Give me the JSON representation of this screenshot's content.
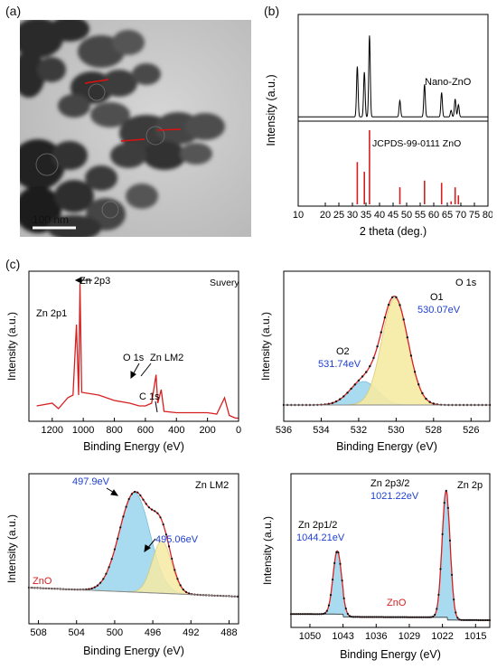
{
  "labels": {
    "a": "(a)",
    "b": "(b)",
    "c": "(c)"
  },
  "tem": {
    "scalebar": "100 nm"
  },
  "xrd": {
    "xlabel": "2 theta (deg.)",
    "ylabel": "Intensity (a.u.)",
    "ticks": [
      "10",
      "20",
      "25",
      "30",
      "35",
      "40",
      "45",
      "50",
      "55",
      "60",
      "65",
      "70",
      "75",
      "80"
    ],
    "curve_label": "Nano-ZnO",
    "ref_label": "JCPDS-99-0111 ZnO"
  },
  "xps": {
    "xlabel": "Binding Energy (eV)",
    "ylabel": "Intensity (a.u.)",
    "survey": {
      "title": "Suvery",
      "peaks": [
        "Zn 2p3",
        "Zn 2p1",
        "O 1s",
        "Zn LM2",
        "C 1s"
      ],
      "ticks": [
        "1200",
        "1000",
        "800",
        "600",
        "400",
        "200",
        "0"
      ]
    },
    "o1s": {
      "title": "O 1s",
      "o1_label": "O1",
      "o1_energy": "530.07eV",
      "o2_label": "O2",
      "o2_energy": "531.74eV",
      "ticks": [
        "536",
        "534",
        "532",
        "530",
        "528",
        "526"
      ]
    },
    "znlm2": {
      "title": "Zn LM2",
      "peak1": "497.9eV",
      "peak2": "495.06eV",
      "zno": "ZnO",
      "ticks": [
        "508",
        "504",
        "500",
        "496",
        "492",
        "488"
      ]
    },
    "zn2p": {
      "title": "Zn 2p",
      "p32_label": "Zn 2p3/2",
      "p32_energy": "1021.22eV",
      "p12_label": "Zn 2p1/2",
      "p12_energy": "1044.21eV",
      "zno": "ZnO",
      "ticks": [
        "1050",
        "1043",
        "1036",
        "1029",
        "1022",
        "1015"
      ]
    }
  },
  "chart_data": [
    {
      "type": "line",
      "title": "",
      "xlabel": "2 theta (deg.)",
      "ylabel": "Intensity (a.u.)",
      "xlim": [
        10,
        80
      ],
      "series": [
        {
          "name": "Nano-ZnO",
          "x": [
            31.8,
            34.4,
            36.3,
            47.5,
            56.6,
            62.9,
            66.4,
            67.9,
            69.1
          ],
          "values": [
            0.62,
            0.55,
            1.0,
            0.2,
            0.4,
            0.3,
            0.08,
            0.22,
            0.15
          ]
        },
        {
          "name": "JCPDS-99-0111 ZnO",
          "x": [
            31.8,
            34.4,
            36.3,
            47.5,
            56.6,
            62.9,
            66.4,
            67.9,
            69.1
          ],
          "values": [
            0.57,
            0.44,
            1.0,
            0.23,
            0.32,
            0.29,
            0.04,
            0.23,
            0.12
          ]
        }
      ]
    },
    {
      "type": "line",
      "title": "Suvery",
      "xlabel": "Binding Energy (eV)",
      "ylabel": "Intensity (a.u.)",
      "xlim": [
        1350,
        0
      ],
      "series": [
        {
          "name": "",
          "x": [
            1300,
            1200,
            1160,
            1100,
            1066,
            1044,
            1030,
            1021,
            1010,
            900,
            800,
            700,
            640,
            600,
            560,
            531,
            520,
            498,
            480,
            400,
            285,
            200,
            140,
            90,
            60,
            20,
            0
          ],
          "values": [
            0.1,
            0.12,
            0.08,
            0.16,
            0.18,
            0.7,
            0.18,
            1.0,
            0.2,
            0.18,
            0.14,
            0.12,
            0.1,
            0.1,
            0.12,
            0.33,
            0.12,
            0.22,
            0.06,
            0.05,
            0.05,
            0.05,
            0.04,
            0.16,
            0.03,
            0.01,
            0.01
          ]
        }
      ]
    },
    {
      "type": "line",
      "title": "O 1s",
      "xlabel": "Binding Energy (eV)",
      "ylabel": "Intensity (a.u.)",
      "xlim": [
        536,
        525
      ],
      "series": [
        {
          "name": "O1",
          "center": 530.07
        },
        {
          "name": "O2",
          "center": 531.74
        }
      ]
    },
    {
      "type": "line",
      "title": "Zn LM2",
      "xlabel": "Binding Energy (eV)",
      "ylabel": "Intensity (a.u.)",
      "xlim": [
        509,
        487
      ],
      "series": [
        {
          "name": "497.9eV",
          "center": 497.9
        },
        {
          "name": "495.06eV",
          "center": 495.06
        }
      ]
    },
    {
      "type": "line",
      "title": "Zn 2p",
      "xlabel": "Binding Energy (eV)",
      "ylabel": "Intensity (a.u.)",
      "xlim": [
        1054,
        1012
      ],
      "series": [
        {
          "name": "Zn 2p3/2",
          "center": 1021.22
        },
        {
          "name": "Zn 2p1/2",
          "center": 1044.21
        }
      ]
    }
  ]
}
